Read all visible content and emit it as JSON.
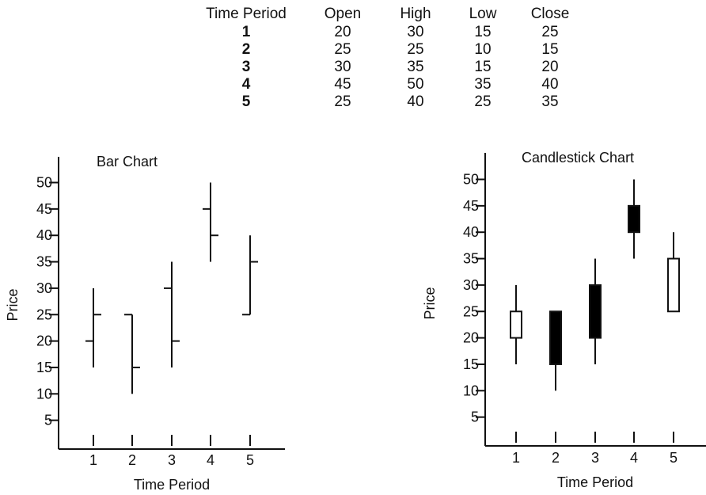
{
  "table": {
    "headers": [
      "Time Period",
      "Open",
      "High",
      "Low",
      "Close"
    ],
    "rows": [
      [
        "1",
        "20",
        "30",
        "15",
        "25"
      ],
      [
        "2",
        "25",
        "25",
        "10",
        "15"
      ],
      [
        "3",
        "30",
        "35",
        "15",
        "20"
      ],
      [
        "4",
        "45",
        "50",
        "35",
        "40"
      ],
      [
        "5",
        "25",
        "40",
        "25",
        "35"
      ]
    ]
  },
  "chart_data": [
    {
      "type": "bar",
      "title": "Bar Chart",
      "xlabel": "Time Period",
      "ylabel": "Price",
      "categories": [
        "1",
        "2",
        "3",
        "4",
        "5"
      ],
      "yticks": [
        5,
        10,
        15,
        20,
        25,
        30,
        35,
        40,
        45,
        50
      ],
      "ylim": [
        0,
        55
      ],
      "open": [
        20,
        25,
        30,
        45,
        25
      ],
      "high": [
        30,
        25,
        35,
        50,
        40
      ],
      "low": [
        15,
        10,
        15,
        35,
        25
      ],
      "close": [
        25,
        15,
        20,
        40,
        35
      ],
      "grid": false
    },
    {
      "type": "candlestick",
      "title": "Candlestick Chart",
      "xlabel": "Time Period",
      "ylabel": "Price",
      "categories": [
        "1",
        "2",
        "3",
        "4",
        "5"
      ],
      "yticks": [
        5,
        10,
        15,
        20,
        25,
        30,
        35,
        40,
        45,
        50
      ],
      "ylim": [
        0,
        55
      ],
      "open": [
        20,
        25,
        30,
        45,
        25
      ],
      "high": [
        30,
        25,
        35,
        50,
        40
      ],
      "low": [
        15,
        10,
        15,
        35,
        25
      ],
      "close": [
        25,
        15,
        20,
        40,
        35
      ],
      "up_color": "#ffffff",
      "down_color": "#000000",
      "grid": false
    }
  ]
}
